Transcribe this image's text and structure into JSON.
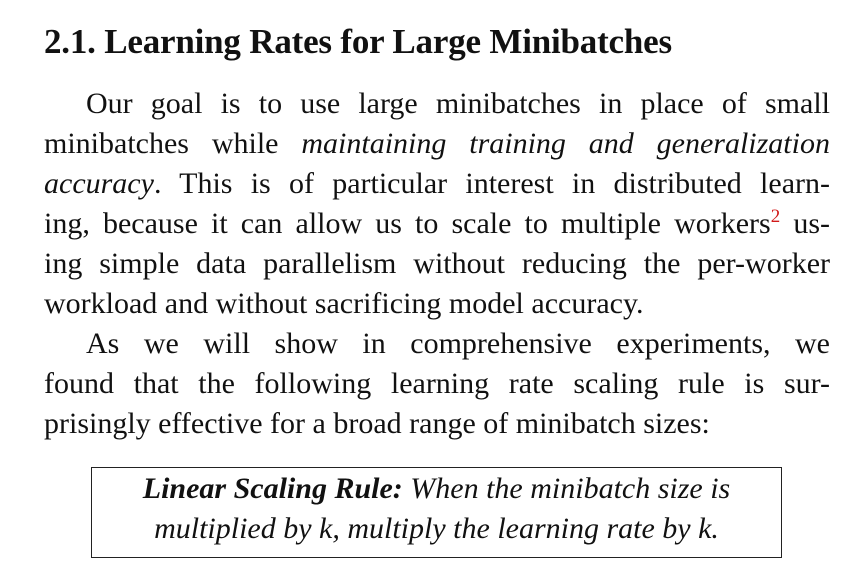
{
  "section": {
    "heading": "2.1. Learning Rates for Large Minibatches"
  },
  "paragraph1": {
    "line1": "Our goal is to use large minibatches in place of small",
    "line2_a": "minibatches while ",
    "line2_b": "maintaining training and generalization",
    "line3_a": "accuracy",
    "line3_b": ". This is of particular interest in distributed learn-",
    "line4_a": "ing, because it can allow us to scale to multiple workers",
    "line4_fn": "2",
    "line4_b": " us-",
    "line5": "ing simple data parallelism without reducing the per-worker",
    "line6": "workload and without sacrificing model accuracy."
  },
  "paragraph2": {
    "line1": "As we will show in comprehensive experiments, we",
    "line2": "found that the following learning rate scaling rule is sur-",
    "line3": "prisingly effective for a broad range of minibatch sizes:"
  },
  "rule": {
    "title": "Linear Scaling Rule:",
    "line1_rest": " When the minibatch size is",
    "line2": "multiplied by k, multiply the learning rate by k."
  },
  "colors": {
    "footnote_marker": "#d11a1a",
    "text": "#111111"
  }
}
